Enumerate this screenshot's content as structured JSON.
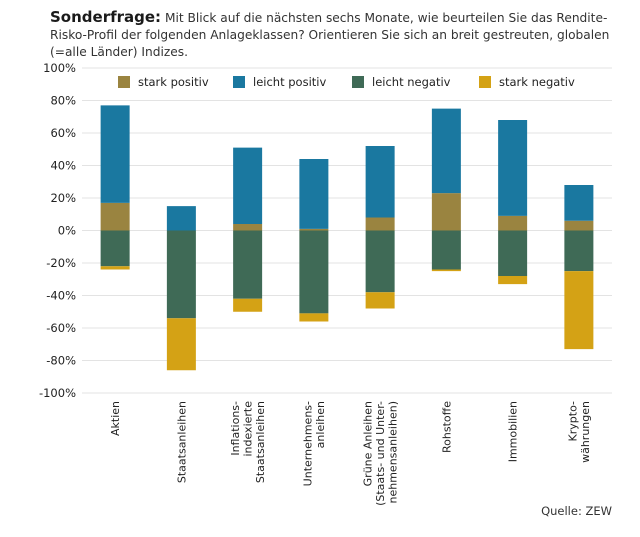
{
  "heading": {
    "lead": "Sonderfrage:",
    "text": "Mit Blick auf die nächsten sechs Monate, wie beurteilen Sie das Rendite-Risko-Profil der folgenden Anlageklassen?  Orientieren Sie sich an breit gestreuten, globalen (=alle Länder) Indizes."
  },
  "source": "Quelle: ZEW",
  "chart_data": {
    "type": "bar",
    "stacked": true,
    "categories": [
      [
        "Aktien"
      ],
      [
        "Staatsanleihen"
      ],
      [
        "Inflations-",
        "indexierte",
        "Staatsanleihen"
      ],
      [
        "Unternehmens-",
        "anleihen"
      ],
      [
        "Grüne Anleihen",
        "(Staats- und Unter-",
        "nehmensanleihen)"
      ],
      [
        "Rohstoffe"
      ],
      [
        "Immobilien"
      ],
      [
        "Krypto-",
        "währungen"
      ]
    ],
    "series": [
      {
        "name": "stark positiv",
        "color": "#9a8440",
        "values": [
          17,
          0,
          4,
          1,
          8,
          23,
          9,
          6
        ]
      },
      {
        "name": "leicht positiv",
        "color": "#1a78a0",
        "values": [
          60,
          15,
          47,
          43,
          44,
          52,
          59,
          22
        ]
      },
      {
        "name": "leicht negativ",
        "color": "#3f6a56",
        "values": [
          -22,
          -54,
          -42,
          -51,
          -38,
          -24,
          -28,
          -25
        ]
      },
      {
        "name": "stark negativ",
        "color": "#d4a215",
        "values": [
          -2,
          -32,
          -8,
          -5,
          -10,
          -1,
          -5,
          -48
        ]
      }
    ],
    "ylim": [
      -100,
      100
    ],
    "yticks": [
      "100%",
      "80%",
      "60%",
      "40%",
      "20%",
      "0%",
      "-20%",
      "-40%",
      "-60%",
      "-80%",
      "-100%"
    ],
    "grid": true,
    "legend_position": "top"
  }
}
